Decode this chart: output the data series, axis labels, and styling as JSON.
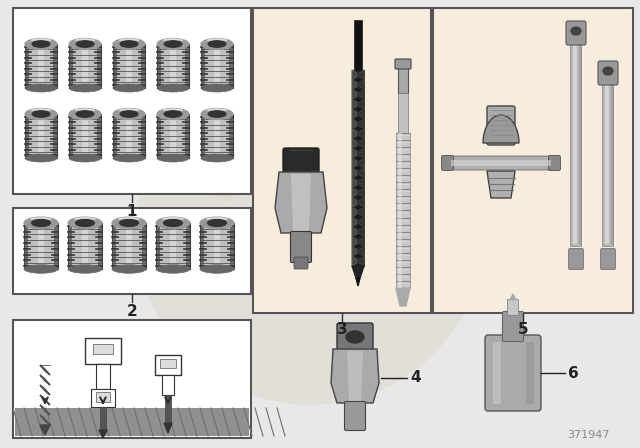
{
  "bg_color": "#e8e8e8",
  "beige_bg": "#f0dfc0",
  "white": "#ffffff",
  "box_edge": "#666666",
  "dark": "#222222",
  "mid_gray": "#888888",
  "light_gray": "#cccccc",
  "label1": "1",
  "label2": "2",
  "label3": "3",
  "label4": "4",
  "label5": "5",
  "label6": "6",
  "watermark": "371947",
  "insert_body": "#b0b0b0",
  "insert_thread": "#888888",
  "insert_dark": "#555555",
  "insert_light": "#d8d8d8",
  "drill_body": "#1a1a1a",
  "drill_flute": "#444444",
  "tap_body": "#c0c0c0",
  "tool_chrome": "#b8b8b8",
  "tool_chrome_dark": "#707070",
  "tool_chrome_light": "#e0e0e0"
}
